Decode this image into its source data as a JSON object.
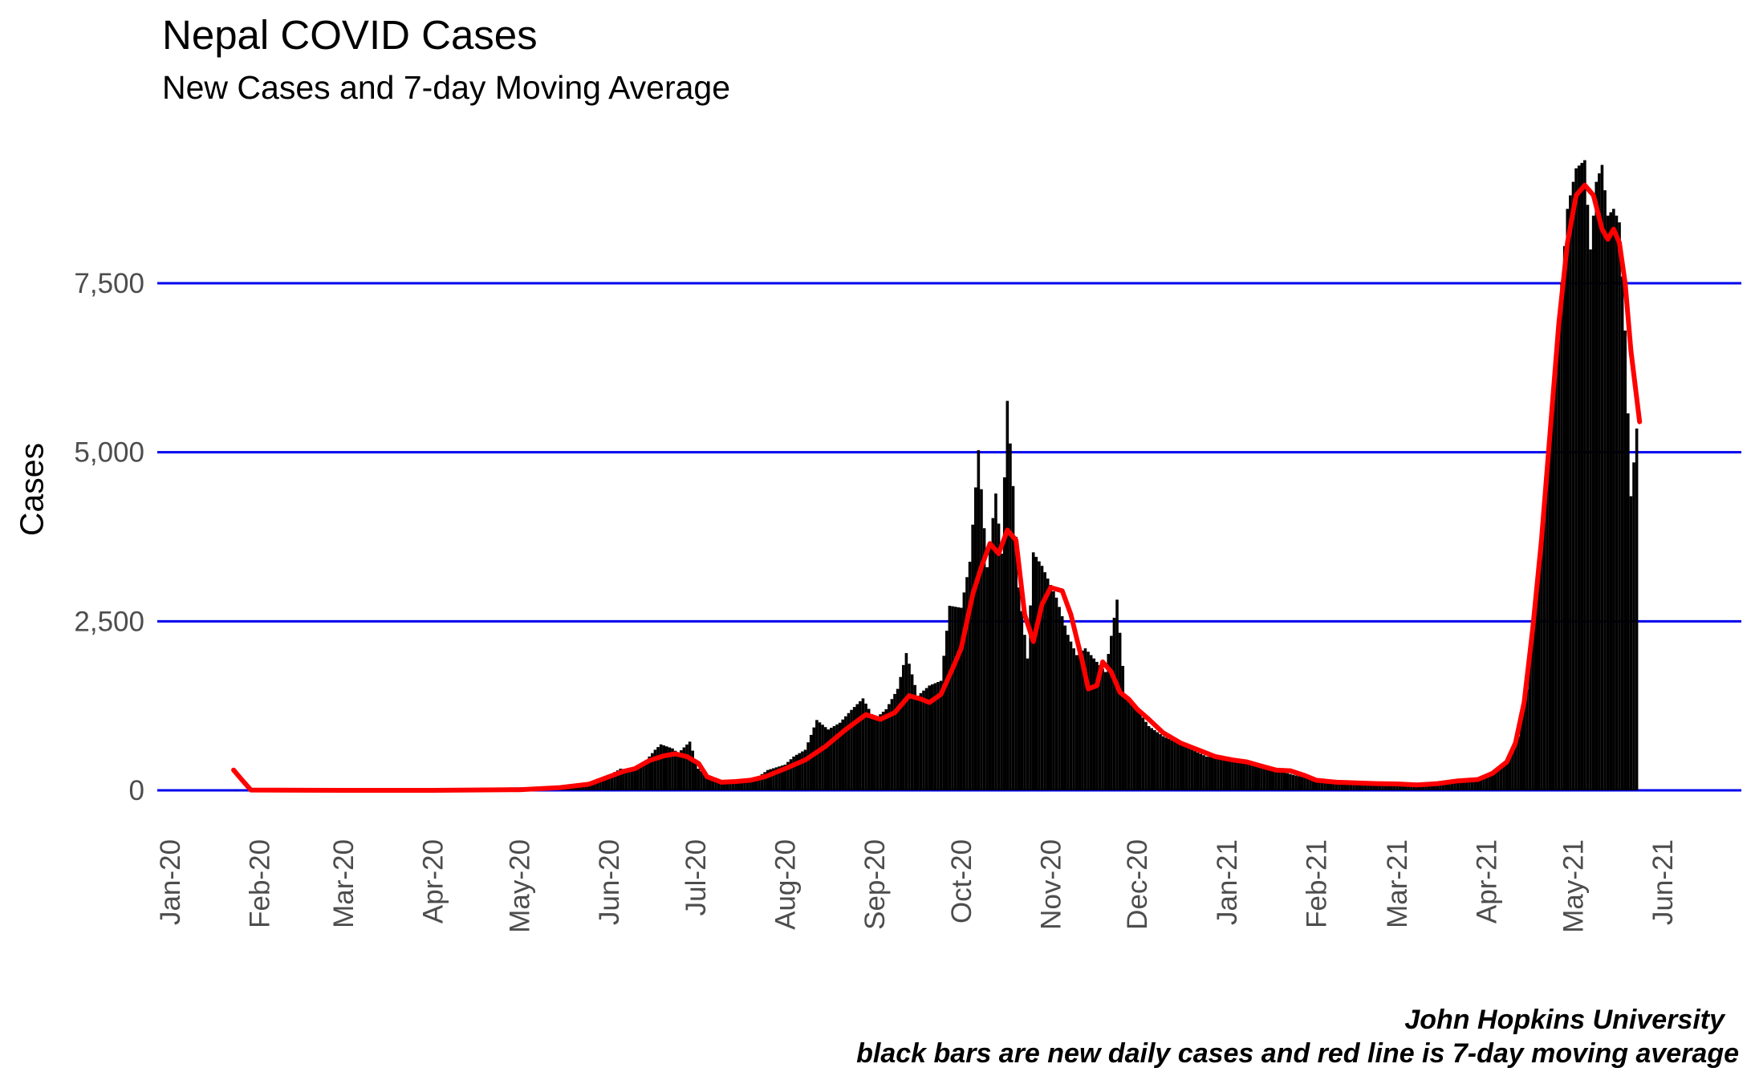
{
  "chart_data": {
    "type": "bar",
    "title": "Nepal COVID Cases",
    "subtitle": "New Cases and 7-day Moving Average",
    "ylabel": "Cases",
    "xlabel": "",
    "caption_line1": "John Hopkins University",
    "caption_line2": "black bars are new daily cases and red line is 7-day moving average",
    "ylim": [
      0,
      10000
    ],
    "y_ticks": [
      {
        "value": 0,
        "label": "0"
      },
      {
        "value": 2500,
        "label": "2,500"
      },
      {
        "value": 5000,
        "label": "5,000"
      },
      {
        "value": 7500,
        "label": "7,500"
      }
    ],
    "x_ticks": [
      {
        "date": "2020-01-01",
        "label": "Jan-20"
      },
      {
        "date": "2020-02-01",
        "label": "Feb-20"
      },
      {
        "date": "2020-03-01",
        "label": "Mar-20"
      },
      {
        "date": "2020-04-01",
        "label": "Apr-20"
      },
      {
        "date": "2020-05-01",
        "label": "May-20"
      },
      {
        "date": "2020-06-01",
        "label": "Jun-20"
      },
      {
        "date": "2020-07-01",
        "label": "Jul-20"
      },
      {
        "date": "2020-08-01",
        "label": "Aug-20"
      },
      {
        "date": "2020-09-01",
        "label": "Sep-20"
      },
      {
        "date": "2020-10-01",
        "label": "Oct-20"
      },
      {
        "date": "2020-11-01",
        "label": "Nov-20"
      },
      {
        "date": "2020-12-01",
        "label": "Dec-20"
      },
      {
        "date": "2021-01-01",
        "label": "Jan-21"
      },
      {
        "date": "2021-02-01",
        "label": "Feb-21"
      },
      {
        "date": "2021-03-01",
        "label": "Mar-21"
      },
      {
        "date": "2021-04-01",
        "label": "Apr-21"
      },
      {
        "date": "2021-05-01",
        "label": "May-21"
      },
      {
        "date": "2021-06-01",
        "label": "Jun-21"
      }
    ],
    "grid": "horizontal major lines",
    "colors": {
      "bars": "#000000",
      "moving_average": "#ff0000",
      "gridlines": "#0000ee"
    },
    "series": [
      {
        "name": "new daily cases",
        "type": "bar",
        "points": [
          [
            "2020-01-24",
            1
          ],
          [
            "2020-05-14",
            50
          ],
          [
            "2020-05-20",
            80
          ],
          [
            "2020-05-25",
            100
          ],
          [
            "2020-06-01",
            220
          ],
          [
            "2020-06-05",
            320
          ],
          [
            "2020-06-10",
            300
          ],
          [
            "2020-06-14",
            450
          ],
          [
            "2020-06-17",
            600
          ],
          [
            "2020-06-19",
            680
          ],
          [
            "2020-06-23",
            620
          ],
          [
            "2020-06-25",
            550
          ],
          [
            "2020-06-29",
            720
          ],
          [
            "2020-07-02",
            320
          ],
          [
            "2020-07-07",
            150
          ],
          [
            "2020-07-12",
            120
          ],
          [
            "2020-07-17",
            150
          ],
          [
            "2020-07-22",
            180
          ],
          [
            "2020-07-26",
            300
          ],
          [
            "2020-08-01",
            380
          ],
          [
            "2020-08-04",
            500
          ],
          [
            "2020-08-08",
            600
          ],
          [
            "2020-08-12",
            1040
          ],
          [
            "2020-08-16",
            900
          ],
          [
            "2020-08-20",
            1000
          ],
          [
            "2020-08-24",
            1190
          ],
          [
            "2020-08-28",
            1360
          ],
          [
            "2020-09-01",
            1050
          ],
          [
            "2020-09-05",
            1200
          ],
          [
            "2020-09-09",
            1500
          ],
          [
            "2020-09-12",
            2030
          ],
          [
            "2020-09-16",
            1400
          ],
          [
            "2020-09-20",
            1550
          ],
          [
            "2020-09-24",
            1620
          ],
          [
            "2020-09-27",
            2730
          ],
          [
            "2020-10-01",
            2700
          ],
          [
            "2020-10-04",
            3380
          ],
          [
            "2020-10-07",
            5030
          ],
          [
            "2020-10-10",
            3300
          ],
          [
            "2020-10-13",
            4390
          ],
          [
            "2020-10-15",
            3500
          ],
          [
            "2020-10-17",
            5760
          ],
          [
            "2020-10-19",
            4500
          ],
          [
            "2020-10-21",
            3000
          ],
          [
            "2020-10-24",
            1950
          ],
          [
            "2020-10-26",
            3520
          ],
          [
            "2020-10-29",
            3320
          ],
          [
            "2020-11-03",
            2850
          ],
          [
            "2020-11-07",
            2300
          ],
          [
            "2020-11-10",
            2000
          ],
          [
            "2020-11-13",
            2100
          ],
          [
            "2020-11-16",
            1950
          ],
          [
            "2020-11-20",
            1750
          ],
          [
            "2020-11-24",
            2820
          ],
          [
            "2020-11-27",
            1350
          ],
          [
            "2020-12-01",
            1200
          ],
          [
            "2020-12-05",
            950
          ],
          [
            "2020-12-10",
            800
          ],
          [
            "2020-12-15",
            700
          ],
          [
            "2020-12-20",
            600
          ],
          [
            "2020-12-25",
            500
          ],
          [
            "2021-01-01",
            470
          ],
          [
            "2021-01-06",
            430
          ],
          [
            "2021-01-12",
            350
          ],
          [
            "2021-01-18",
            300
          ],
          [
            "2021-01-24",
            230
          ],
          [
            "2021-02-01",
            150
          ],
          [
            "2021-02-08",
            110
          ],
          [
            "2021-02-15",
            100
          ],
          [
            "2021-02-22",
            90
          ],
          [
            "2021-03-01",
            80
          ],
          [
            "2021-03-08",
            70
          ],
          [
            "2021-03-15",
            80
          ],
          [
            "2021-03-22",
            130
          ],
          [
            "2021-03-29",
            170
          ],
          [
            "2021-04-01",
            200
          ],
          [
            "2021-04-05",
            300
          ],
          [
            "2021-04-09",
            500
          ],
          [
            "2021-04-12",
            800
          ],
          [
            "2021-04-15",
            1500
          ],
          [
            "2021-04-18",
            2700
          ],
          [
            "2021-04-21",
            4350
          ],
          [
            "2021-04-24",
            5700
          ],
          [
            "2021-04-27",
            7500
          ],
          [
            "2021-04-29",
            8600
          ],
          [
            "2021-05-02",
            9200
          ],
          [
            "2021-05-05",
            9320
          ],
          [
            "2021-05-07",
            8000
          ],
          [
            "2021-05-09",
            9000
          ],
          [
            "2021-05-11",
            9250
          ],
          [
            "2021-05-13",
            8500
          ],
          [
            "2021-05-15",
            8600
          ],
          [
            "2021-05-17",
            8400
          ],
          [
            "2021-05-19",
            6800
          ],
          [
            "2021-05-21",
            4350
          ],
          [
            "2021-05-23",
            5350
          ]
        ]
      },
      {
        "name": "7-day moving average",
        "type": "line",
        "points": [
          [
            "2020-01-23",
            300
          ],
          [
            "2020-01-26",
            150
          ],
          [
            "2020-01-29",
            5
          ],
          [
            "2020-03-01",
            0
          ],
          [
            "2020-04-01",
            0
          ],
          [
            "2020-05-01",
            10
          ],
          [
            "2020-05-15",
            40
          ],
          [
            "2020-05-25",
            90
          ],
          [
            "2020-06-01",
            200
          ],
          [
            "2020-06-06",
            280
          ],
          [
            "2020-06-10",
            320
          ],
          [
            "2020-06-15",
            440
          ],
          [
            "2020-06-20",
            510
          ],
          [
            "2020-06-24",
            540
          ],
          [
            "2020-06-28",
            500
          ],
          [
            "2020-07-02",
            400
          ],
          [
            "2020-07-05",
            200
          ],
          [
            "2020-07-10",
            120
          ],
          [
            "2020-07-15",
            130
          ],
          [
            "2020-07-20",
            150
          ],
          [
            "2020-07-25",
            200
          ],
          [
            "2020-08-01",
            320
          ],
          [
            "2020-08-08",
            450
          ],
          [
            "2020-08-15",
            650
          ],
          [
            "2020-08-22",
            900
          ],
          [
            "2020-08-29",
            1120
          ],
          [
            "2020-09-03",
            1050
          ],
          [
            "2020-09-08",
            1150
          ],
          [
            "2020-09-13",
            1400
          ],
          [
            "2020-09-17",
            1350
          ],
          [
            "2020-09-20",
            1300
          ],
          [
            "2020-09-24",
            1420
          ],
          [
            "2020-09-28",
            1800
          ],
          [
            "2020-10-01",
            2100
          ],
          [
            "2020-10-05",
            2900
          ],
          [
            "2020-10-08",
            3300
          ],
          [
            "2020-10-11",
            3650
          ],
          [
            "2020-10-14",
            3500
          ],
          [
            "2020-10-17",
            3850
          ],
          [
            "2020-10-20",
            3700
          ],
          [
            "2020-10-23",
            2600
          ],
          [
            "2020-10-26",
            2200
          ],
          [
            "2020-10-29",
            2750
          ],
          [
            "2020-11-01",
            3000
          ],
          [
            "2020-11-05",
            2950
          ],
          [
            "2020-11-08",
            2600
          ],
          [
            "2020-11-12",
            1900
          ],
          [
            "2020-11-14",
            1500
          ],
          [
            "2020-11-17",
            1550
          ],
          [
            "2020-11-19",
            1900
          ],
          [
            "2020-11-22",
            1750
          ],
          [
            "2020-11-25",
            1450
          ],
          [
            "2020-11-28",
            1350
          ],
          [
            "2020-12-01",
            1200
          ],
          [
            "2020-12-05",
            1050
          ],
          [
            "2020-12-10",
            850
          ],
          [
            "2020-12-16",
            700
          ],
          [
            "2020-12-22",
            600
          ],
          [
            "2020-12-28",
            500
          ],
          [
            "2021-01-03",
            450
          ],
          [
            "2021-01-08",
            420
          ],
          [
            "2021-01-13",
            360
          ],
          [
            "2021-01-18",
            300
          ],
          [
            "2021-01-23",
            290
          ],
          [
            "2021-01-28",
            220
          ],
          [
            "2021-02-01",
            150
          ],
          [
            "2021-02-08",
            120
          ],
          [
            "2021-02-15",
            110
          ],
          [
            "2021-02-22",
            100
          ],
          [
            "2021-03-01",
            95
          ],
          [
            "2021-03-08",
            80
          ],
          [
            "2021-03-15",
            100
          ],
          [
            "2021-03-22",
            140
          ],
          [
            "2021-03-29",
            160
          ],
          [
            "2021-04-03",
            250
          ],
          [
            "2021-04-08",
            420
          ],
          [
            "2021-04-11",
            700
          ],
          [
            "2021-04-14",
            1300
          ],
          [
            "2021-04-17",
            2400
          ],
          [
            "2021-04-20",
            3700
          ],
          [
            "2021-04-23",
            5300
          ],
          [
            "2021-04-26",
            6900
          ],
          [
            "2021-04-29",
            8100
          ],
          [
            "2021-05-02",
            8800
          ],
          [
            "2021-05-05",
            8950
          ],
          [
            "2021-05-08",
            8800
          ],
          [
            "2021-05-11",
            8300
          ],
          [
            "2021-05-13",
            8150
          ],
          [
            "2021-05-15",
            8300
          ],
          [
            "2021-05-17",
            8100
          ],
          [
            "2021-05-19",
            7500
          ],
          [
            "2021-05-21",
            6500
          ],
          [
            "2021-05-24",
            5450
          ]
        ]
      }
    ]
  }
}
